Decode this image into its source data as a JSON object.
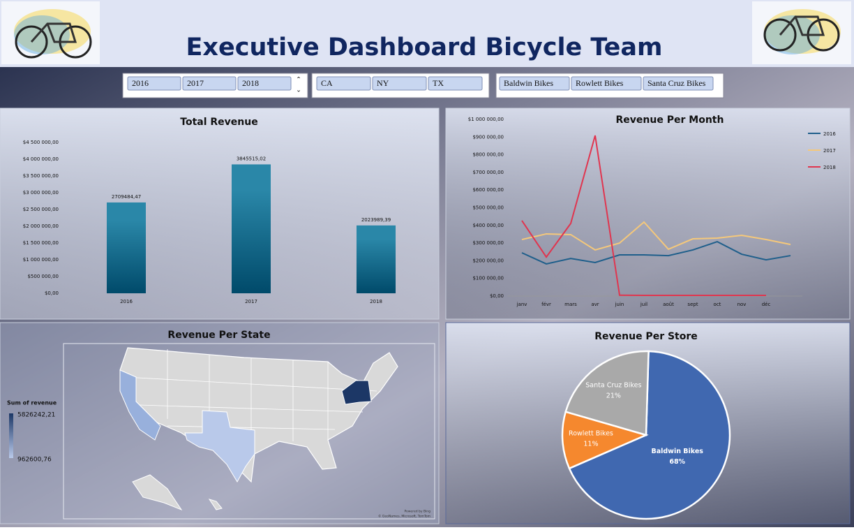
{
  "header": {
    "title": "Executive Dashboard Bicycle Team"
  },
  "slicers": {
    "years": [
      "2016",
      "2017",
      "2018"
    ],
    "states": [
      "CA",
      "NY",
      "TX"
    ],
    "stores": [
      "Baldwin Bikes",
      "Rowlett Bikes",
      "Santa Cruz Bikes"
    ]
  },
  "chart_data": [
    {
      "type": "bar",
      "title": "Total Revenue",
      "categories": [
        "2016",
        "2017",
        "2018"
      ],
      "values": [
        2709484.47,
        3845515.02,
        2023989.39
      ],
      "value_labels": [
        "2709484,47",
        "3845515,02",
        "2023989,39"
      ],
      "color": "#2a87a8",
      "ylim": [
        0,
        4500000
      ],
      "yticks": [
        {
          "value": 0,
          "label": "$0,00"
        },
        {
          "value": 500000,
          "label": "$500 000,00"
        },
        {
          "value": 1000000,
          "label": "$1 000 000,00"
        },
        {
          "value": 1500000,
          "label": "$1 500 000,00"
        },
        {
          "value": 2000000,
          "label": "$2 000 000,00"
        },
        {
          "value": 2500000,
          "label": "$2 500 000,00"
        },
        {
          "value": 3000000,
          "label": "$3 000 000,00"
        },
        {
          "value": 3500000,
          "label": "$3 500 000,00"
        },
        {
          "value": 4000000,
          "label": "$4 000 000,00"
        },
        {
          "value": 4500000,
          "label": "$4 500 000,00"
        }
      ]
    },
    {
      "type": "line",
      "title": "Revenue Per Month",
      "categories": [
        "janv",
        "févr",
        "mars",
        "avr",
        "juin",
        "juil",
        "août",
        "sept",
        "oct",
        "nov",
        "déc",
        null
      ],
      "series": [
        {
          "name": "2016",
          "color": "#1f5f8b",
          "values": [
            245000,
            182000,
            213000,
            190000,
            233000,
            233000,
            229000,
            261000,
            308000,
            237000,
            205000,
            229000
          ]
        },
        {
          "name": "2017",
          "color": "#f5c87a",
          "values": [
            320000,
            352000,
            348000,
            261000,
            300000,
            419000,
            265000,
            324000,
            328000,
            344000,
            320000,
            292000
          ]
        },
        {
          "name": "2018",
          "color": "#e0354f",
          "values": [
            427000,
            221000,
            411000,
            909000,
            5000,
            4000,
            4000,
            4000,
            4000,
            4000,
            4000,
            null
          ]
        }
      ],
      "ylim": [
        0,
        1000000
      ],
      "yticks": [
        {
          "value": 0,
          "label": "$0,00"
        },
        {
          "value": 100000,
          "label": "$100 000,00"
        },
        {
          "value": 200000,
          "label": "$200 000,00"
        },
        {
          "value": 300000,
          "label": "$300 000,00"
        },
        {
          "value": 400000,
          "label": "$400 000,00"
        },
        {
          "value": 500000,
          "label": "$500 000,00"
        },
        {
          "value": 600000,
          "label": "$600 000,00"
        },
        {
          "value": 700000,
          "label": "$700 000,00"
        },
        {
          "value": 800000,
          "label": "$800 000,00"
        },
        {
          "value": 900000,
          "label": "$900 000,00"
        },
        {
          "value": 1000000,
          "label": "$1 000 000,00"
        }
      ],
      "legend": "right"
    },
    {
      "type": "map",
      "title": "Revenue Per State",
      "legend_title": "Sum of revenue",
      "colorscale": {
        "max": 5826242.21,
        "max_label": "5826242,21",
        "min": 962600.76,
        "min_label": "962600,76",
        "colors": [
          "#b9c9ea",
          "#1c3766"
        ]
      },
      "attribution": [
        "Powered by Bing",
        "© GeoNames, Microsoft, TomTom"
      ]
    },
    {
      "type": "pie",
      "title": "Revenue Per Store",
      "categories": [
        "Baldwin Bikes",
        "Rowlett Bikes",
        "Santa Cruz Bikes"
      ],
      "values": [
        68,
        11,
        21
      ],
      "value_labels": [
        "68%",
        "11%",
        "21%"
      ],
      "colors": [
        "#4068b0",
        "#f5882e",
        "#a9a9a9"
      ]
    }
  ]
}
